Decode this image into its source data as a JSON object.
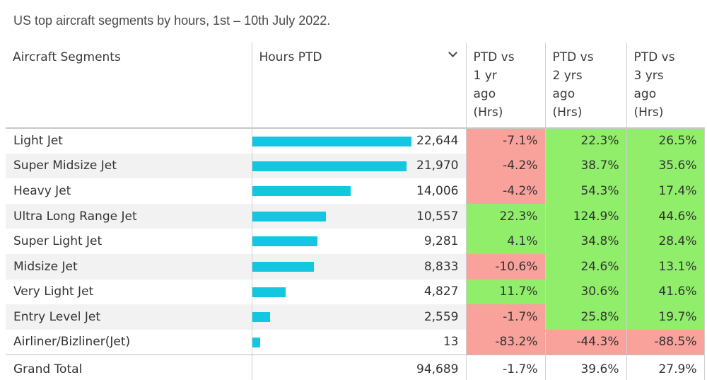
{
  "title": "US top aircraft segments by hours, 1st – 10th July 2022.",
  "columns": {
    "segment": "Aircraft Segments",
    "hours": "Hours PTD",
    "vs1": [
      "PTD vs",
      "1 yr",
      "ago",
      "(Hrs)"
    ],
    "vs2": [
      "PTD vs",
      "2 yrs",
      "ago",
      "(Hrs)"
    ],
    "vs3": [
      "PTD vs",
      "3 yrs",
      "ago",
      "(Hrs)"
    ]
  },
  "colors": {
    "bar": "#13c7e0",
    "negative": "#f9a19b",
    "positive": "#90ee6b"
  },
  "icons": {
    "sort": "chevron-down-icon"
  },
  "chart_data": {
    "type": "table",
    "rows": [
      {
        "segment": "Light Jet",
        "hours": 22644,
        "hours_label": "22,644",
        "vs1": "-7.1%",
        "vs2": "22.3%",
        "vs3": "26.5%"
      },
      {
        "segment": "Super Midsize Jet",
        "hours": 21970,
        "hours_label": "21,970",
        "vs1": "-4.2%",
        "vs2": "38.7%",
        "vs3": "35.6%"
      },
      {
        "segment": "Heavy Jet",
        "hours": 14006,
        "hours_label": "14,006",
        "vs1": "-4.2%",
        "vs2": "54.3%",
        "vs3": "17.4%"
      },
      {
        "segment": "Ultra Long Range Jet",
        "hours": 10557,
        "hours_label": "10,557",
        "vs1": "22.3%",
        "vs2": "124.9%",
        "vs3": "44.6%"
      },
      {
        "segment": "Super Light Jet",
        "hours": 9281,
        "hours_label": "9,281",
        "vs1": "4.1%",
        "vs2": "34.8%",
        "vs3": "28.4%"
      },
      {
        "segment": "Midsize Jet",
        "hours": 8833,
        "hours_label": "8,833",
        "vs1": "-10.6%",
        "vs2": "24.6%",
        "vs3": "13.1%"
      },
      {
        "segment": "Very Light Jet",
        "hours": 4827,
        "hours_label": "4,827",
        "vs1": "11.7%",
        "vs2": "30.6%",
        "vs3": "41.6%"
      },
      {
        "segment": "Entry Level Jet",
        "hours": 2559,
        "hours_label": "2,559",
        "vs1": "-1.7%",
        "vs2": "25.8%",
        "vs3": "19.7%"
      },
      {
        "segment": "Airliner/Bizliner(Jet)",
        "hours": 13,
        "hours_label": "13",
        "vs1": "-83.2%",
        "vs2": "-44.3%",
        "vs3": "-88.5%"
      }
    ],
    "total": {
      "segment": "Grand Total",
      "hours_label": "94,689",
      "vs1": "-1.7%",
      "vs2": "39.6%",
      "vs3": "27.9%"
    }
  }
}
